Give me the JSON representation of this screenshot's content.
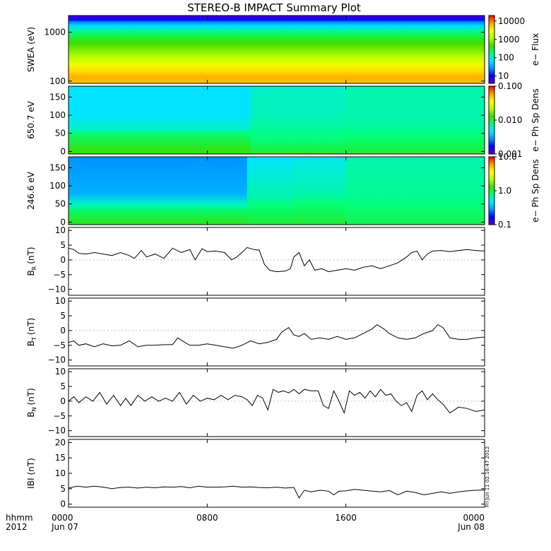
{
  "title": "STEREO-B IMPACT Summary Plot",
  "time_axis": {
    "row_label_1": "hhmm",
    "row_label_2": "2012",
    "ticks": [
      {
        "t": 0,
        "time": "0000",
        "date": "Jun 07"
      },
      {
        "t": 8,
        "time": "0800",
        "date": ""
      },
      {
        "t": 16,
        "time": "1600",
        "date": ""
      },
      {
        "t": 24,
        "time": "0000",
        "date": "Jun 08"
      }
    ],
    "range_hours": [
      0,
      24
    ]
  },
  "timestamp": "Fri Jun 11 02:16:47 2012",
  "colors": {
    "colormap": [
      "#5a00c8",
      "#0000ff",
      "#0096ff",
      "#00e6ff",
      "#00ff78",
      "#3cdc00",
      "#b4ff00",
      "#ffff00",
      "#ffa000",
      "#ff0000"
    ]
  },
  "chart_data": [
    {
      "type": "heatmap",
      "name": "SWEA",
      "ylabel": "SWEA (eV)",
      "yscale": "log",
      "ylim": [
        90,
        2200
      ],
      "yticks": [
        {
          "v": 100,
          "label": "100"
        },
        {
          "v": 1000,
          "label": "1000"
        }
      ],
      "colorbar": {
        "label": "e− Flux",
        "scale": "log",
        "range": [
          4,
          20000
        ],
        "ticks": [
          {
            "v": 10,
            "label": "10"
          },
          {
            "v": 100,
            "label": "100"
          },
          {
            "v": 1000,
            "label": "1000"
          },
          {
            "v": 10000,
            "label": "10000"
          }
        ]
      },
      "energy_bands": [
        {
          "ev": 2000,
          "color_level": 0.05
        },
        {
          "ev": 1800,
          "color_level": 0.12
        },
        {
          "ev": 1600,
          "color_level": 0.22
        },
        {
          "ev": 1350,
          "color_level": 0.32
        },
        {
          "ev": 1050,
          "color_level": 0.42
        },
        {
          "ev": 800,
          "color_level": 0.5
        },
        {
          "ev": 600,
          "color_level": 0.56
        },
        {
          "ev": 420,
          "color_level": 0.62
        },
        {
          "ev": 300,
          "color_level": 0.68
        },
        {
          "ev": 220,
          "color_level": 0.75
        },
        {
          "ev": 160,
          "color_level": 0.82
        },
        {
          "ev": 120,
          "color_level": 0.87
        },
        {
          "ev": 95,
          "color_level": 0.85
        }
      ]
    },
    {
      "type": "heatmap",
      "name": "PAD 650.7 eV",
      "ylabel": "650.7 eV",
      "ylim": [
        -7,
        180
      ],
      "yticks": [
        {
          "v": 0,
          "label": "0"
        },
        {
          "v": 50,
          "label": "50"
        },
        {
          "v": 100,
          "label": "100"
        },
        {
          "v": 150,
          "label": "150"
        }
      ],
      "colorbar": {
        "label": "e− Ph Sp Dens",
        "scale": "log",
        "range": [
          0.001,
          0.1
        ],
        "ticks": [
          {
            "v": 0.001,
            "label": "0.001"
          },
          {
            "v": 0.01,
            "label": "0.010"
          },
          {
            "v": 0.1,
            "label": "0.100"
          }
        ]
      },
      "segments": [
        {
          "t": [
            0,
            10.5
          ],
          "levels": [
            [
              0,
              0.54
            ],
            [
              25,
              0.5
            ],
            [
              50,
              0.45
            ],
            [
              60,
              0.38
            ],
            [
              100,
              0.33
            ],
            [
              180,
              0.33
            ]
          ]
        },
        {
          "t": [
            10.5,
            16
          ],
          "levels": [
            [
              0,
              0.5
            ],
            [
              30,
              0.45
            ],
            [
              60,
              0.42
            ],
            [
              100,
              0.39
            ],
            [
              180,
              0.38
            ]
          ]
        },
        {
          "t": [
            16,
            24
          ],
          "levels": [
            [
              0,
              0.5
            ],
            [
              40,
              0.45
            ],
            [
              60,
              0.42
            ],
            [
              100,
              0.4
            ],
            [
              180,
              0.4
            ]
          ]
        }
      ]
    },
    {
      "type": "heatmap",
      "name": "PAD 246.6 eV",
      "ylabel": "246.6 eV",
      "ylim": [
        -7,
        180
      ],
      "yticks": [
        {
          "v": 0,
          "label": "0"
        },
        {
          "v": 50,
          "label": "50"
        },
        {
          "v": 100,
          "label": "100"
        },
        {
          "v": 150,
          "label": "150"
        }
      ],
      "colorbar": {
        "label": "e− Ph Sp Dens",
        "scale": "log",
        "range": [
          0.1,
          10
        ],
        "ticks": [
          {
            "v": 0.1,
            "label": "0.1"
          },
          {
            "v": 1,
            "label": "1.0"
          },
          {
            "v": 10,
            "label": "10.0"
          }
        ]
      },
      "segments": [
        {
          "t": [
            0,
            10.3
          ],
          "levels": [
            [
              0,
              0.52
            ],
            [
              30,
              0.46
            ],
            [
              50,
              0.38
            ],
            [
              80,
              0.26
            ],
            [
              180,
              0.22
            ]
          ]
        },
        {
          "t": [
            10.3,
            13
          ],
          "levels": [
            [
              0,
              0.5
            ],
            [
              40,
              0.45
            ],
            [
              70,
              0.4
            ],
            [
              180,
              0.33
            ]
          ]
        },
        {
          "t": [
            13,
            16
          ],
          "levels": [
            [
              0,
              0.5
            ],
            [
              50,
              0.45
            ],
            [
              80,
              0.4
            ],
            [
              180,
              0.35
            ]
          ]
        },
        {
          "t": [
            16,
            24
          ],
          "levels": [
            [
              0,
              0.48
            ],
            [
              50,
              0.44
            ],
            [
              80,
              0.42
            ],
            [
              180,
              0.4
            ]
          ]
        }
      ]
    },
    {
      "type": "line",
      "name": "BR",
      "label_main": "B",
      "label_sub": "R",
      "label_unit": "(nT)",
      "ylim": [
        -12,
        11
      ],
      "yticks": [
        {
          "v": -10,
          "label": "−10"
        },
        {
          "v": -5,
          "label": "−5"
        },
        {
          "v": 0,
          "label": "0"
        },
        {
          "v": 5,
          "label": "5"
        },
        {
          "v": 10,
          "label": "10"
        }
      ],
      "x": [
        0,
        0.3,
        0.6,
        1,
        1.5,
        2,
        2.5,
        3,
        3.5,
        3.8,
        4.2,
        4.5,
        5,
        5.5,
        6,
        6.5,
        7,
        7.3,
        7.7,
        8,
        8.5,
        9,
        9.4,
        9.7,
        10,
        10.3,
        10.7,
        11,
        11.3,
        11.6,
        12,
        12.5,
        12.8,
        13,
        13.3,
        13.6,
        13.9,
        14.2,
        14.6,
        15,
        15.5,
        16,
        16.5,
        17,
        17.5,
        18,
        18.5,
        19,
        19.5,
        19.8,
        20.1,
        20.4,
        20.7,
        21,
        21.5,
        22,
        22.5,
        23,
        23.5,
        24
      ],
      "y": [
        4,
        3.5,
        2.2,
        2,
        2.5,
        2,
        1.5,
        2.5,
        1.5,
        0.5,
        3.2,
        1,
        2,
        0.5,
        4,
        2.5,
        3.5,
        0,
        3.8,
        2.8,
        3,
        2.5,
        0,
        1,
        2.5,
        4.2,
        3.5,
        3.3,
        -1.5,
        -3.5,
        -4,
        -3.8,
        -3,
        1,
        2.5,
        -2,
        0,
        -3.5,
        -3,
        -4,
        -3.5,
        -3,
        -3.5,
        -2.5,
        -2,
        -3,
        -2,
        -1,
        1,
        2.5,
        3,
        0,
        2,
        3,
        3.2,
        2.8,
        3.2,
        3.5,
        3.2,
        3
      ],
      "baseline": 0
    },
    {
      "type": "line",
      "name": "BT",
      "label_main": "B",
      "label_sub": "T",
      "label_unit": "(nT)",
      "ylim": [
        -12,
        11
      ],
      "yticks": [
        {
          "v": -10,
          "label": "−10"
        },
        {
          "v": -5,
          "label": "−5"
        },
        {
          "v": 0,
          "label": "0"
        },
        {
          "v": 5,
          "label": "5"
        },
        {
          "v": 10,
          "label": "10"
        }
      ],
      "x": [
        0,
        0.3,
        0.6,
        1,
        1.5,
        2,
        2.5,
        3,
        3.5,
        4,
        4.5,
        5,
        5.5,
        6,
        6.3,
        6.7,
        7,
        7.5,
        8,
        8.5,
        9,
        9.5,
        10,
        10.5,
        11,
        11.5,
        12,
        12.3,
        12.7,
        13,
        13.3,
        13.6,
        14,
        14.5,
        15,
        15.5,
        16,
        16.5,
        17,
        17.5,
        17.8,
        18.2,
        18.5,
        19,
        19.5,
        20,
        20.5,
        21,
        21.3,
        21.6,
        22,
        22.5,
        23,
        23.5,
        24
      ],
      "y": [
        -4,
        -3.5,
        -5,
        -4.5,
        -5.5,
        -4.5,
        -5.2,
        -5,
        -3.5,
        -5.5,
        -5,
        -5,
        -4.8,
        -4.8,
        -2.5,
        -4,
        -5,
        -5,
        -4.5,
        -5,
        -5.5,
        -6,
        -5,
        -3.5,
        -4.5,
        -4,
        -3,
        -0.5,
        1,
        -1.5,
        -2,
        -1,
        -3,
        -2.5,
        -3,
        -2,
        -3,
        -2.5,
        -1,
        0.5,
        2,
        0.5,
        -1,
        -2.5,
        -3,
        -2.5,
        -1,
        0,
        2,
        1,
        -2.5,
        -3,
        -3,
        -2.5,
        -2.2
      ],
      "baseline": 0
    },
    {
      "type": "line",
      "name": "BN",
      "label_main": "B",
      "label_sub": "N",
      "label_unit": "(nT)",
      "ylim": [
        -12,
        11
      ],
      "yticks": [
        {
          "v": -10,
          "label": "−10"
        },
        {
          "v": -5,
          "label": "−5"
        },
        {
          "v": 0,
          "label": "0"
        },
        {
          "v": 5,
          "label": "5"
        },
        {
          "v": 10,
          "label": "10"
        }
      ],
      "x": [
        0,
        0.3,
        0.6,
        1,
        1.4,
        1.8,
        2.2,
        2.6,
        3,
        3.3,
        3.6,
        4,
        4.4,
        4.8,
        5.2,
        5.6,
        6,
        6.4,
        6.8,
        7.2,
        7.6,
        8,
        8.4,
        8.8,
        9.2,
        9.6,
        10,
        10.3,
        10.6,
        10.9,
        11.2,
        11.5,
        11.8,
        12.1,
        12.4,
        12.7,
        13,
        13.3,
        13.6,
        14,
        14.4,
        14.7,
        15,
        15.3,
        15.6,
        15.9,
        16.2,
        16.5,
        16.8,
        17.1,
        17.4,
        17.7,
        18,
        18.3,
        18.6,
        18.9,
        19.2,
        19.5,
        19.8,
        20.1,
        20.4,
        20.7,
        21,
        21.3,
        21.6,
        22,
        22.5,
        23,
        23.5,
        24
      ],
      "y": [
        0,
        1.5,
        -0.5,
        1.5,
        0,
        3,
        -1,
        2,
        -1.5,
        1,
        -1.5,
        2,
        0,
        1.5,
        0,
        1,
        0,
        3,
        -1,
        2,
        0,
        1,
        0.5,
        2,
        0.5,
        2,
        1.5,
        0.5,
        -1.5,
        2,
        1,
        -3,
        4,
        3,
        3.5,
        2.8,
        4,
        2.5,
        4,
        3.5,
        3.5,
        -1.5,
        -2.5,
        3.5,
        0,
        -4,
        3.5,
        2,
        3,
        1,
        3.5,
        1.5,
        4,
        2,
        2.5,
        0,
        -1.5,
        -0.5,
        -3.5,
        2,
        3.5,
        0.5,
        2.5,
        0.5,
        -1,
        -4,
        -2,
        -2.5,
        -3.5,
        -3
      ],
      "baseline": 0
    },
    {
      "type": "line",
      "name": "B magnitude",
      "label_main": "IBI",
      "label_sub": "",
      "label_unit": "(nT)",
      "ylim": [
        -1,
        21
      ],
      "yticks": [
        {
          "v": 0,
          "label": "0"
        },
        {
          "v": 5,
          "label": "5"
        },
        {
          "v": 10,
          "label": "10"
        },
        {
          "v": 15,
          "label": "15"
        },
        {
          "v": 20,
          "label": "20"
        }
      ],
      "x": [
        0,
        0.5,
        1,
        1.5,
        2,
        2.5,
        3,
        3.5,
        4,
        4.5,
        5,
        5.5,
        6,
        6.5,
        7,
        7.5,
        8,
        8.5,
        9,
        9.5,
        10,
        10.5,
        11,
        11.5,
        12,
        12.5,
        13,
        13.3,
        13.6,
        14,
        14.5,
        15,
        15.3,
        15.6,
        16,
        16.5,
        17,
        17.5,
        18,
        18.5,
        19,
        19.5,
        20,
        20.5,
        21,
        21.5,
        22,
        22.5,
        23,
        23.5,
        24
      ],
      "y": [
        5.2,
        5.8,
        5.5,
        5.8,
        5.5,
        5,
        5.4,
        5.5,
        5.2,
        5.5,
        5.3,
        5.6,
        5.5,
        5.7,
        5.3,
        5.8,
        5.5,
        5.5,
        5.6,
        5.8,
        5.5,
        5.6,
        5.4,
        5.3,
        5.5,
        5.2,
        5.4,
        2,
        4.5,
        4,
        4.5,
        4.2,
        3,
        4.2,
        4.3,
        4.8,
        4.5,
        4.2,
        4,
        4.4,
        3,
        4.2,
        3.8,
        3,
        3.5,
        4,
        3.5,
        4,
        4.3,
        4.5,
        4.6
      ],
      "baseline": null
    }
  ]
}
